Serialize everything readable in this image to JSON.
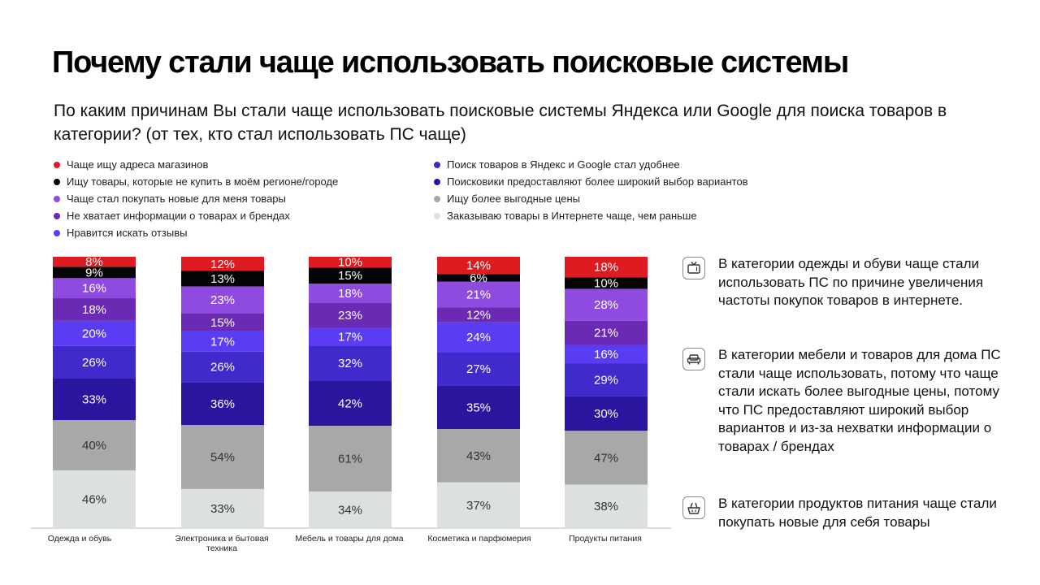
{
  "title": "Почему стали чаще использовать поисковые системы",
  "subtitle": "По каким причинам Вы стали чаще использовать поисковые системы Яндекса или Google для поиска товаров в категории? (от тех, кто стал использовать ПС чаще)",
  "chart_data": {
    "type": "bar",
    "stacked": true,
    "categories": [
      "Одежда и обувь",
      "Электроника и бытовая техника",
      "Мебель и товары для дома",
      "Косметика и парфюмерия",
      "Продукты питания"
    ],
    "series": [
      {
        "name": "Заказываю товары в Интернете чаще, чем раньше",
        "color": "#dde0e1",
        "values": [
          46,
          33,
          34,
          37,
          38
        ]
      },
      {
        "name": "Ищу более выгодные цены",
        "color": "#a8a8a8",
        "values": [
          40,
          54,
          61,
          43,
          47
        ]
      },
      {
        "name": "Поисковики предоставляют более широкий выбор вариантов",
        "color": "#2a169e",
        "values": [
          33,
          36,
          42,
          35,
          30
        ]
      },
      {
        "name": "Поиск товаров в Яндекс и Google стал удобнее",
        "color": "#3f2bcc",
        "values": [
          26,
          26,
          32,
          27,
          29
        ]
      },
      {
        "name": "Нравится искать отзывы",
        "color": "#5a3cf2",
        "values": [
          20,
          17,
          17,
          24,
          16
        ]
      },
      {
        "name": "Не хватает информации о товарах и брендах",
        "color": "#6a2ab3",
        "values": [
          18,
          15,
          23,
          12,
          21
        ]
      },
      {
        "name": "Чаще стал покупать новые для меня товары",
        "color": "#8f4ae0",
        "values": [
          16,
          23,
          18,
          21,
          28
        ]
      },
      {
        "name": "Ищу товары, которые не купить в моём регионе/городе",
        "color": "#050505",
        "values": [
          9,
          13,
          15,
          6,
          10
        ]
      },
      {
        "name": "Чаще ищу адреса магазинов",
        "color": "#df1b22",
        "values": [
          8,
          12,
          10,
          14,
          18
        ]
      }
    ],
    "label_format": "{v}%"
  },
  "legend_left": [
    {
      "label": "Чаще ищу адреса магазинов",
      "color": "#df1b22"
    },
    {
      "label": "Ищу товары, которые не купить в моём регионе/городе",
      "color": "#050505"
    },
    {
      "label": "Чаще стал покупать новые для меня товары",
      "color": "#8f4ae0"
    },
    {
      "label": "Не хватает информации о товарах и брендах",
      "color": "#6a2ab3"
    },
    {
      "label": "Нравится искать отзывы",
      "color": "#5a3cf2"
    }
  ],
  "legend_right": [
    {
      "label": "Поиск товаров в Яндекс и Google стал удобнее",
      "color": "#3f2bcc"
    },
    {
      "label": "Поисковики предоставляют более широкий выбор вариантов",
      "color": "#2a169e"
    },
    {
      "label": "Ищу более выгодные цены",
      "color": "#a8a8a8"
    },
    {
      "label": "Заказываю товары в Интернете чаще, чем раньше",
      "color": "#dde0e1"
    }
  ],
  "notes": [
    {
      "icon": "tv-icon",
      "text": "В категории одежды и обуви чаще стали использовать ПС по причине увеличения частоты покупок товаров в интернете."
    },
    {
      "icon": "sofa-icon",
      "text": "В категории мебели и товаров для дома ПС стали чаще использовать, потому что  чаще стали искать более выгодные цены, потому что ПС предоставляют широкий выбор вариантов и из-за нехватки информации о товарах / брендах"
    },
    {
      "icon": "food-basket-icon",
      "text": "В категории продуктов питания чаще стали покупать новые для себя товары"
    }
  ]
}
